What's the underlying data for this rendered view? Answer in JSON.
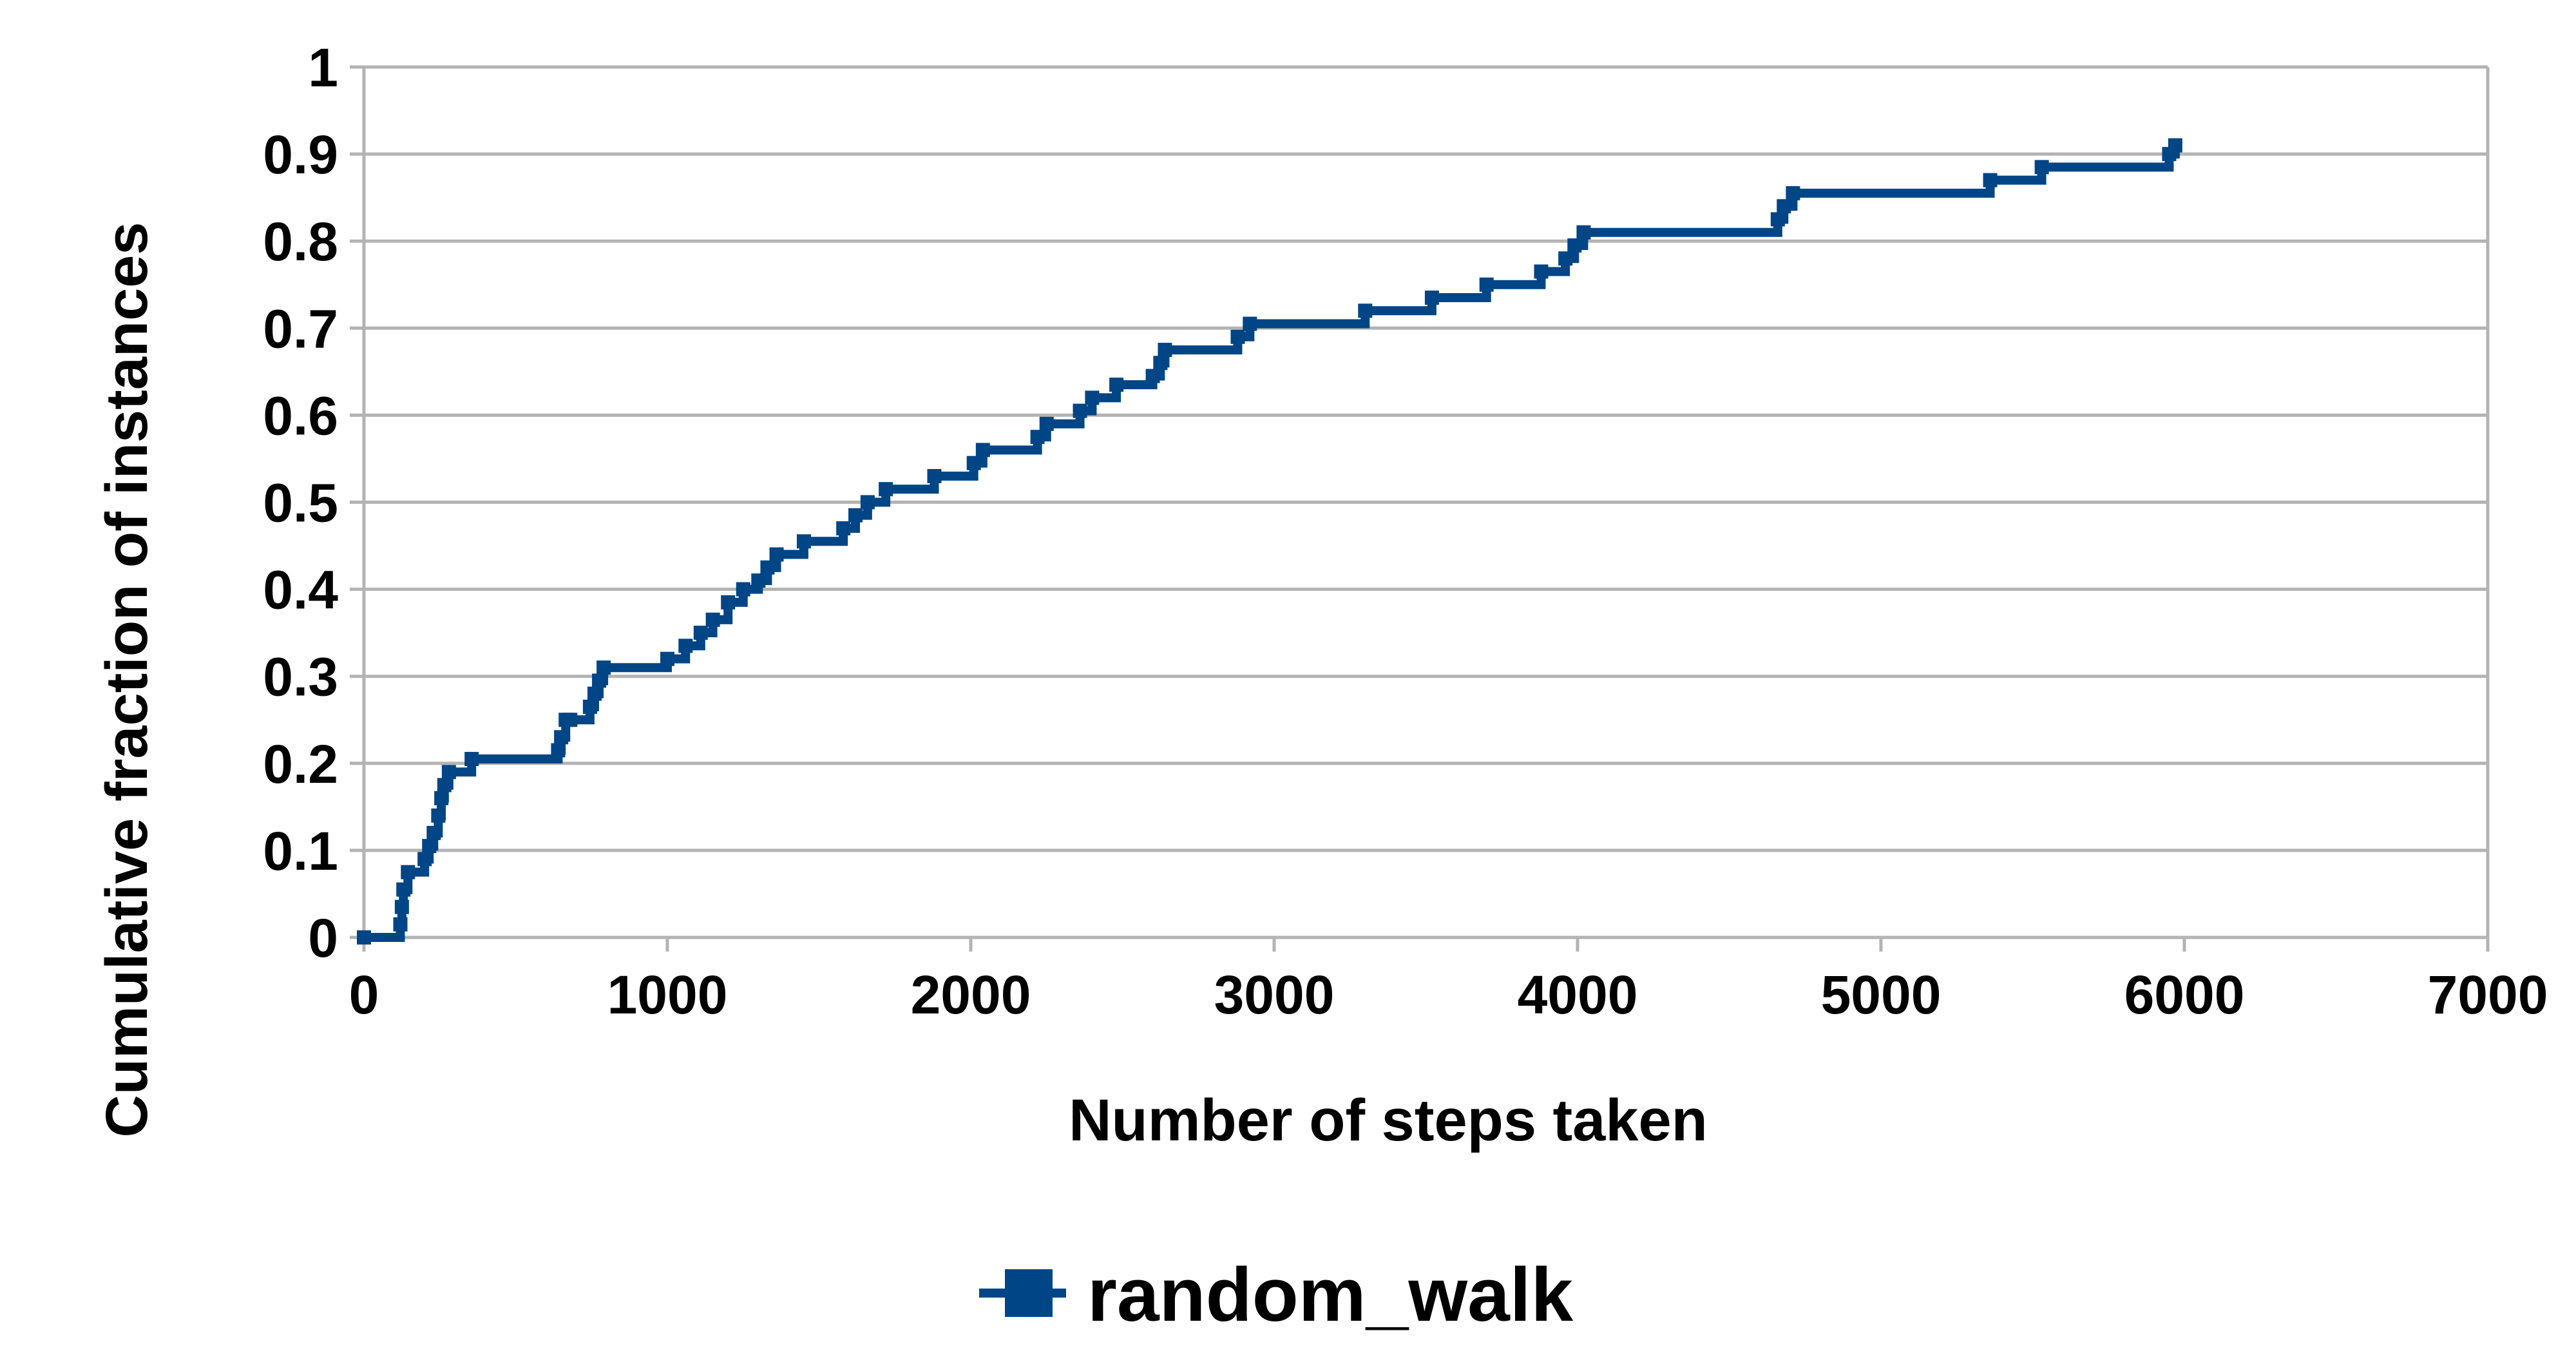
{
  "chart_data": {
    "type": "line",
    "title": "",
    "xlabel": "Number of steps taken",
    "ylabel": "Cumulative fraction of instances",
    "xlim": [
      0,
      7000
    ],
    "ylim": [
      0,
      1
    ],
    "xticks": [
      0,
      1000,
      2000,
      3000,
      4000,
      5000,
      6000,
      7000
    ],
    "yticks": [
      0,
      0.1,
      0.2,
      0.3,
      0.4,
      0.5,
      0.6,
      0.7,
      0.8,
      0.9,
      1
    ],
    "ytick_labels": [
      "0",
      "0.1",
      "0.2",
      "0.3",
      "0.4",
      "0.5",
      "0.6",
      "0.7",
      "0.8",
      "0.9",
      "1"
    ],
    "grid": "horizontal",
    "legend_position": "bottom",
    "series": [
      {
        "name": "random_walk",
        "color": "#004586",
        "marker": "square",
        "step": true,
        "x": [
          0,
          120,
          125,
          130,
          145,
          200,
          215,
          230,
          245,
          255,
          265,
          280,
          355,
          640,
          650,
          665,
          680,
          745,
          760,
          775,
          790,
          1000,
          1060,
          1110,
          1150,
          1200,
          1250,
          1300,
          1330,
          1360,
          1450,
          1580,
          1620,
          1660,
          1720,
          1880,
          2010,
          2040,
          2220,
          2250,
          2360,
          2400,
          2480,
          2600,
          2625,
          2640,
          2880,
          2920,
          3300,
          3520,
          3700,
          3880,
          3960,
          3990,
          4020,
          4660,
          4680,
          4710,
          5360,
          5530,
          5950,
          5970
        ],
        "y": [
          0,
          0.015,
          0.035,
          0.055,
          0.075,
          0.09,
          0.105,
          0.12,
          0.14,
          0.16,
          0.175,
          0.19,
          0.205,
          0.215,
          0.23,
          0.25,
          0.25,
          0.265,
          0.28,
          0.295,
          0.31,
          0.32,
          0.335,
          0.35,
          0.365,
          0.385,
          0.4,
          0.41,
          0.425,
          0.44,
          0.455,
          0.47,
          0.485,
          0.5,
          0.515,
          0.53,
          0.545,
          0.56,
          0.575,
          0.59,
          0.605,
          0.62,
          0.635,
          0.645,
          0.66,
          0.675,
          0.69,
          0.705,
          0.72,
          0.735,
          0.75,
          0.765,
          0.78,
          0.795,
          0.81,
          0.825,
          0.84,
          0.855,
          0.87,
          0.885,
          0.9,
          0.91
        ]
      }
    ]
  }
}
